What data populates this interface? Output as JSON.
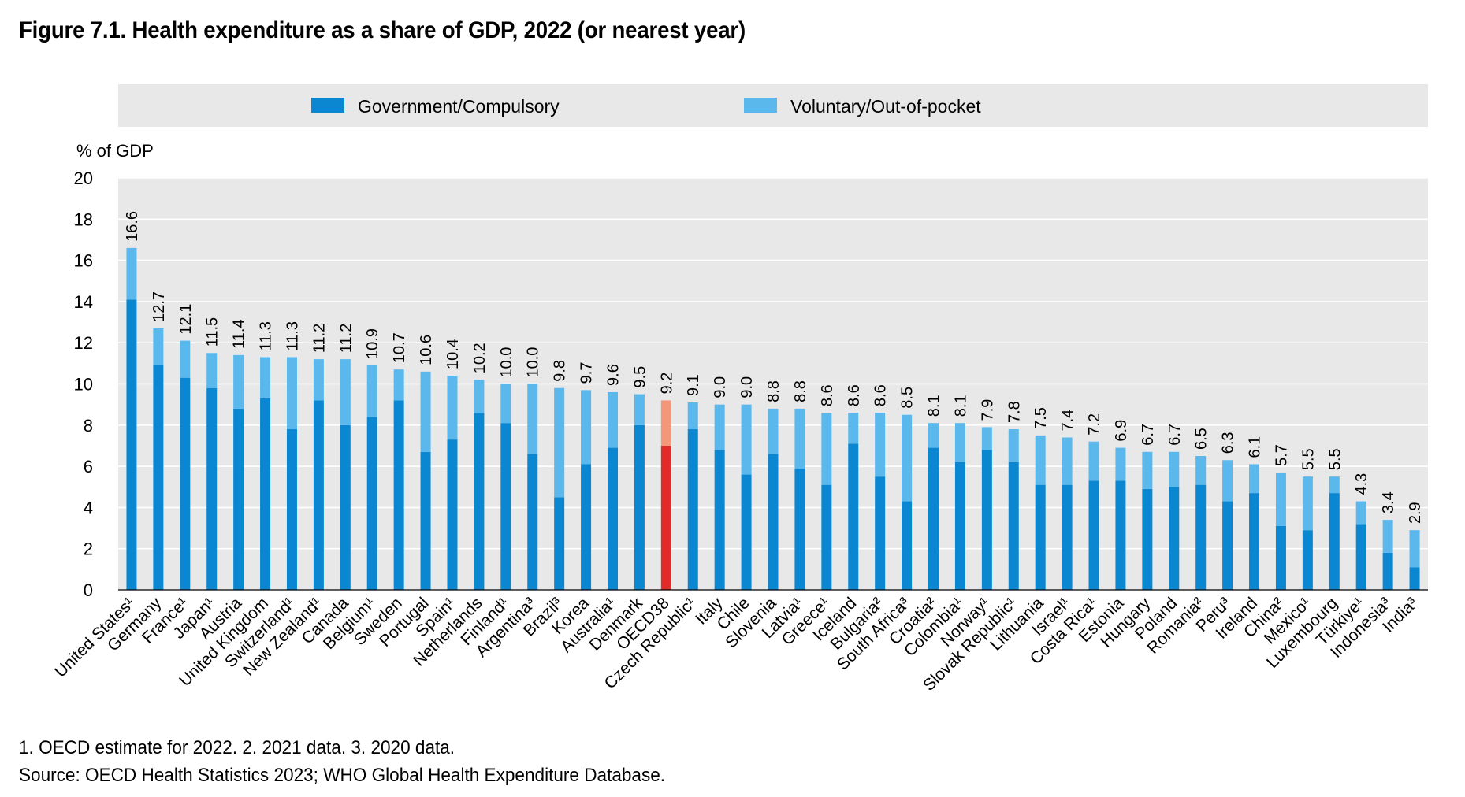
{
  "chart_data": {
    "type": "bar",
    "stacked": true,
    "title": "Figure 7.1. Health expenditure as a share of GDP, 2022 (or nearest year)",
    "ylabel": "% of GDP",
    "xlabel": "",
    "ylim": [
      0,
      20
    ],
    "yticks": [
      0,
      2,
      4,
      6,
      8,
      10,
      12,
      14,
      16,
      18,
      20
    ],
    "grid": true,
    "legend_position": "top",
    "categories": [
      "United States¹",
      "Germany",
      "France¹",
      "Japan¹",
      "Austria",
      "United Kingdom",
      "Switzerland¹",
      "New Zealand¹",
      "Canada",
      "Belgium¹",
      "Sweden",
      "Portugal",
      "Spain¹",
      "Netherlands",
      "Finland¹",
      "Argentina³",
      "Brazil³",
      "Korea",
      "Australia¹",
      "Denmark",
      "OECD38",
      "Czech Republic¹",
      "Italy",
      "Chile",
      "Slovenia",
      "Latvia¹",
      "Greece¹",
      "Iceland",
      "Bulgaria²",
      "South Africa³",
      "Croatia²",
      "Colombia¹",
      "Norway¹",
      "Slovak Republic¹",
      "Lithuania",
      "Israel¹",
      "Costa Rica¹",
      "Estonia",
      "Hungary",
      "Poland",
      "Romania²",
      "Peru³",
      "Ireland",
      "China²",
      "Mexico¹",
      "Luxembourg",
      "Türkiye¹",
      "Indonesia³",
      "India³"
    ],
    "totals": [
      16.6,
      12.7,
      12.1,
      11.5,
      11.4,
      11.3,
      11.3,
      11.2,
      11.2,
      10.9,
      10.7,
      10.6,
      10.4,
      10.2,
      10.0,
      10.0,
      9.8,
      9.7,
      9.6,
      9.5,
      9.2,
      9.1,
      9.0,
      9.0,
      8.8,
      8.8,
      8.6,
      8.6,
      8.6,
      8.5,
      8.1,
      8.1,
      7.9,
      7.8,
      7.5,
      7.4,
      7.2,
      6.9,
      6.7,
      6.7,
      6.5,
      6.3,
      6.1,
      5.7,
      5.5,
      5.5,
      4.3,
      3.4,
      2.9
    ],
    "total_labels": [
      "16.6",
      "12.7",
      "12.1",
      "11.5",
      "11.4",
      "11.3",
      "11.3",
      "11.2",
      "11.2",
      "10.9",
      "10.7",
      "10.6",
      "10.4",
      "10.2",
      "10.0",
      "10.0",
      "9.8",
      "9.7",
      "9.6",
      "9.5",
      "9.2",
      "9.1",
      "9.0",
      "9.0",
      "8.8",
      "8.8",
      "8.6",
      "8.6",
      "8.6",
      "8.5",
      "8.1",
      "8.1",
      "7.9",
      "7.8",
      "7.5",
      "7.4",
      "7.2",
      "6.9",
      "6.7",
      "6.7",
      "6.5",
      "6.3",
      "6.1",
      "5.7",
      "5.5",
      "5.5",
      "4.3",
      "3.4",
      "2.9"
    ],
    "highlight_category": "OECD38",
    "series": [
      {
        "name": "Government/Compulsory",
        "color": "#0a87d0",
        "highlight_color": "#e12a2a",
        "values": [
          14.1,
          10.9,
          10.3,
          9.8,
          8.8,
          9.3,
          7.8,
          9.2,
          8.0,
          8.4,
          9.2,
          6.7,
          7.3,
          8.6,
          8.1,
          6.6,
          4.5,
          6.1,
          6.9,
          8.0,
          7.0,
          7.8,
          6.8,
          5.6,
          6.6,
          5.9,
          5.1,
          7.1,
          5.5,
          4.3,
          6.9,
          6.2,
          6.8,
          6.2,
          5.1,
          5.1,
          5.3,
          5.3,
          4.9,
          5.0,
          5.1,
          4.3,
          4.7,
          3.1,
          2.9,
          4.7,
          3.2,
          1.8,
          1.1
        ]
      },
      {
        "name": "Voluntary/Out-of-pocket",
        "color": "#5ab8ec",
        "highlight_color": "#f4967a",
        "values": [
          2.5,
          1.8,
          1.8,
          1.7,
          2.6,
          2.0,
          3.5,
          2.0,
          3.2,
          2.5,
          1.5,
          3.9,
          3.1,
          1.6,
          1.9,
          3.4,
          5.3,
          3.6,
          2.7,
          1.5,
          2.2,
          1.3,
          2.2,
          3.4,
          2.2,
          2.9,
          3.5,
          1.5,
          3.1,
          4.2,
          1.2,
          1.9,
          1.1,
          1.6,
          2.4,
          2.3,
          1.9,
          1.6,
          1.8,
          1.7,
          1.4,
          2.0,
          1.4,
          2.6,
          2.6,
          0.8,
          1.1,
          1.6,
          1.8
        ]
      }
    ]
  },
  "notes": {
    "footnote": "1. OECD estimate for 2022. 2. 2021 data. 3. 2020 data.",
    "source": "Source: OECD Health Statistics 2023; WHO Global Health Expenditure Database."
  }
}
